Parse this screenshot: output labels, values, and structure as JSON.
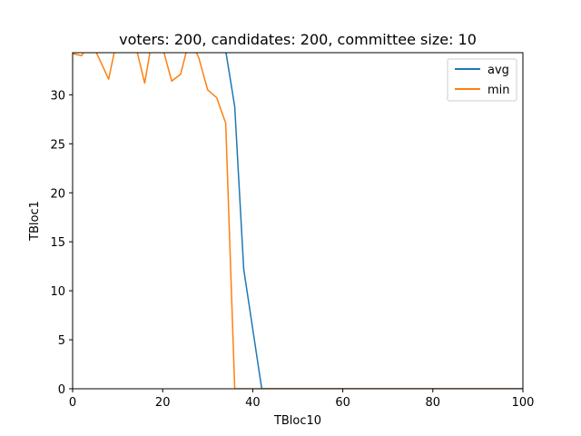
{
  "chart_data": {
    "type": "line",
    "title": "voters: 200, candidates: 200, committee size: 10",
    "xlabel": "TBloc10",
    "ylabel": "TBloc1",
    "xlim": [
      0,
      100
    ],
    "ylim": [
      0,
      34.3
    ],
    "xticks": [
      0,
      20,
      40,
      60,
      80,
      100
    ],
    "yticks": [
      0,
      5,
      10,
      15,
      20,
      25,
      30
    ],
    "grid": false,
    "legend_position": "top-right",
    "series": [
      {
        "name": "avg",
        "color": "#1f77b4",
        "x": [
          34,
          36,
          38,
          40,
          42,
          44,
          100
        ],
        "y": [
          34.5,
          28.8,
          12.2,
          6.1,
          0,
          0,
          0
        ]
      },
      {
        "name": "min",
        "color": "#ff7f0e",
        "x": [
          0,
          2,
          4,
          6,
          8,
          10,
          12,
          14,
          16,
          18,
          20,
          22,
          24,
          26,
          28,
          30,
          32,
          34,
          36,
          38,
          100
        ],
        "y": [
          34.2,
          34.0,
          35.5,
          33.6,
          31.6,
          36.0,
          35.5,
          35.0,
          31.2,
          36.5,
          34.8,
          31.4,
          32.1,
          35.8,
          33.8,
          30.5,
          29.7,
          27.1,
          0,
          0,
          0
        ]
      }
    ]
  }
}
